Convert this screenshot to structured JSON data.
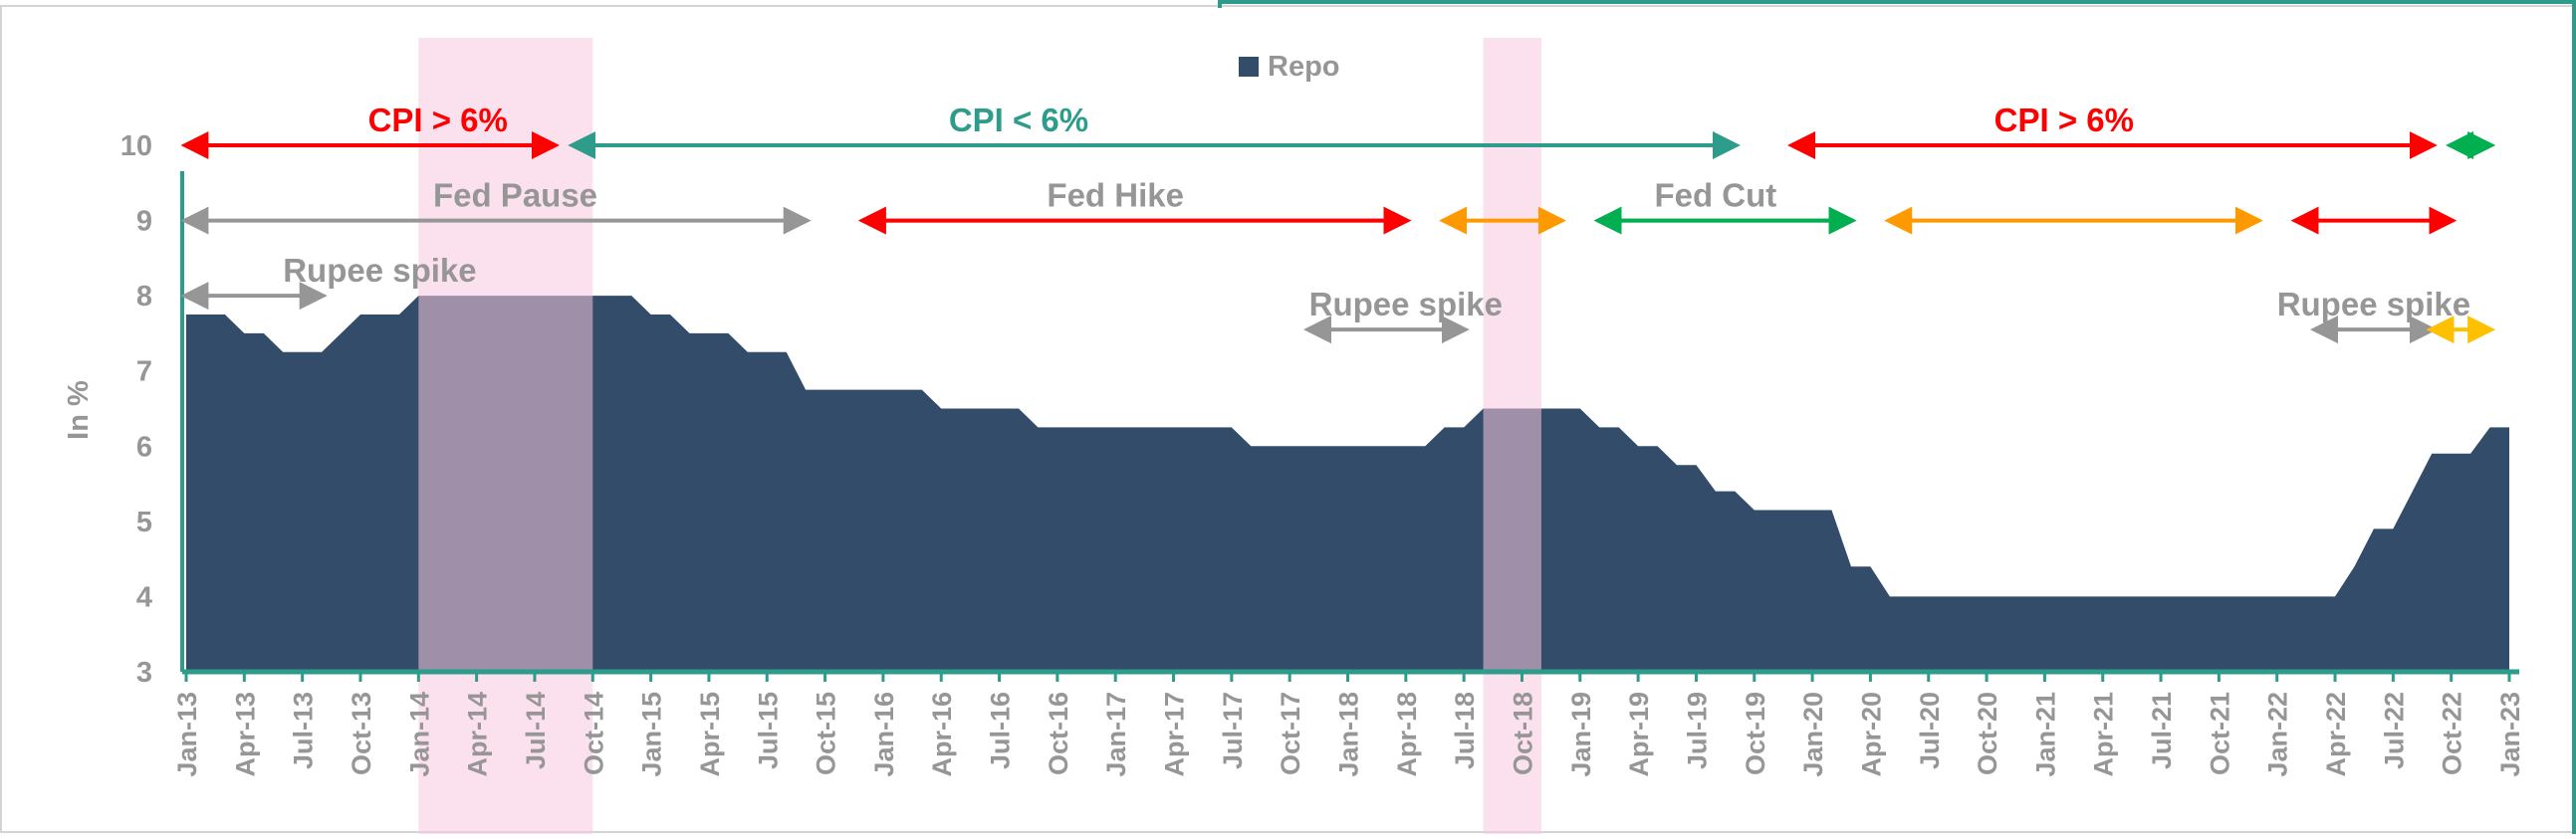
{
  "chart_data": {
    "type": "area",
    "title": "",
    "ylabel": "In %",
    "xlabel": "",
    "ylim": [
      3,
      10
    ],
    "yticks": [
      "3",
      "4",
      "5",
      "6",
      "7",
      "8",
      "9",
      "10"
    ],
    "legend": {
      "position": "top-center",
      "entries": [
        {
          "name": "Repo",
          "color": "#334c69"
        }
      ]
    },
    "grid": false,
    "x_start": "Jan-13",
    "x_end": "Jan-23",
    "xticks": [
      "Jan-13",
      "Apr-13",
      "Jul-13",
      "Oct-13",
      "Jan-14",
      "Apr-14",
      "Jul-14",
      "Oct-14",
      "Jan-15",
      "Apr-15",
      "Jul-15",
      "Oct-15",
      "Jan-16",
      "Apr-16",
      "Jul-16",
      "Oct-16",
      "Jan-17",
      "Apr-17",
      "Jul-17",
      "Oct-17",
      "Jan-18",
      "Apr-18",
      "Jul-18",
      "Oct-18",
      "Jan-19",
      "Apr-19",
      "Jul-19",
      "Oct-19",
      "Jan-20",
      "Apr-20",
      "Jul-20",
      "Oct-20",
      "Jan-21",
      "Apr-21",
      "Jul-21",
      "Oct-21",
      "Jan-22",
      "Apr-22",
      "Jul-22",
      "Oct-22",
      "Jan-23"
    ],
    "series": [
      {
        "name": "Repo",
        "color": "#334c69",
        "points": [
          [
            "Jan-13",
            7.75
          ],
          [
            "Mar-13",
            7.75
          ],
          [
            "Apr-13",
            7.5
          ],
          [
            "May-13",
            7.5
          ],
          [
            "Jun-13",
            7.25
          ],
          [
            "Jul-13",
            7.25
          ],
          [
            "Aug-13",
            7.25
          ],
          [
            "Oct-13",
            7.75
          ],
          [
            "Dec-13",
            7.75
          ],
          [
            "Jan-14",
            8.0
          ],
          [
            "Dec-14",
            8.0
          ],
          [
            "Jan-15",
            7.75
          ],
          [
            "Feb-15",
            7.75
          ],
          [
            "Mar-15",
            7.5
          ],
          [
            "May-15",
            7.5
          ],
          [
            "Jun-15",
            7.25
          ],
          [
            "Aug-15",
            7.25
          ],
          [
            "Sep-15",
            6.75
          ],
          [
            "Mar-16",
            6.75
          ],
          [
            "Apr-16",
            6.5
          ],
          [
            "Aug-16",
            6.5
          ],
          [
            "Sep-16",
            6.25
          ],
          [
            "Jul-17",
            6.25
          ],
          [
            "Aug-17",
            6.0
          ],
          [
            "May-18",
            6.0
          ],
          [
            "Jun-18",
            6.25
          ],
          [
            "Jul-18",
            6.25
          ],
          [
            "Aug-18",
            6.5
          ],
          [
            "Jan-19",
            6.5
          ],
          [
            "Feb-19",
            6.25
          ],
          [
            "Mar-19",
            6.25
          ],
          [
            "Apr-19",
            6.0
          ],
          [
            "May-19",
            6.0
          ],
          [
            "Jun-19",
            5.75
          ],
          [
            "Jul-19",
            5.75
          ],
          [
            "Aug-19",
            5.4
          ],
          [
            "Sep-19",
            5.4
          ],
          [
            "Oct-19",
            5.15
          ],
          [
            "Feb-20",
            5.15
          ],
          [
            "Mar-20",
            4.4
          ],
          [
            "Apr-20",
            4.4
          ],
          [
            "May-20",
            4.0
          ],
          [
            "Apr-22",
            4.0
          ],
          [
            "May-22",
            4.4
          ],
          [
            "Jun-22",
            4.9
          ],
          [
            "Jul-22",
            4.9
          ],
          [
            "Aug-22",
            5.4
          ],
          [
            "Sep-22",
            5.9
          ],
          [
            "Nov-22",
            5.9
          ],
          [
            "Dec-22",
            6.25
          ],
          [
            "Jan-23",
            6.25
          ]
        ]
      }
    ],
    "shaded_periods": [
      {
        "from": "Jan-14",
        "to": "Oct-14",
        "color": "#f8c6df"
      },
      {
        "from": "Aug-18",
        "to": "Nov-18",
        "color": "#f8c6df"
      }
    ],
    "annotations": [
      {
        "text": "CPI > 6%",
        "color": "#ff0000",
        "y": 10.0,
        "from": "Jan-13",
        "to": "Aug-14",
        "label_at": "Feb-14"
      },
      {
        "text": "CPI < 6%",
        "color": "#2e9c8a",
        "y": 10.0,
        "from": "Sep-14",
        "to": "Sep-19",
        "label_at": "Aug-16"
      },
      {
        "text": "CPI > 6%",
        "color": "#ff0000",
        "y": 10.0,
        "from": "Dec-19",
        "to": "Sep-22",
        "label_at": "Feb-21"
      },
      {
        "text": "",
        "color": "#00b050",
        "y": 10.0,
        "from": "Oct-22",
        "to": "Dec-22"
      },
      {
        "text": "Fed Pause",
        "color": "#969696",
        "y": 9.0,
        "from": "Jan-13",
        "to": "Sep-15",
        "label_at": "Jun-14"
      },
      {
        "text": "Fed Hike",
        "color": "#969696",
        "y": 9.0,
        "from": "Dec-15",
        "to": "Apr-18",
        "label_at": "Jan-17"
      },
      {
        "text": "",
        "color": "#ff0000",
        "y": 9.0,
        "from": "Dec-15",
        "to": "Apr-18"
      },
      {
        "text": "",
        "color": "#ff9900",
        "y": 9.0,
        "from": "Jun-18",
        "to": "Dec-18"
      },
      {
        "text": "Fed Cut",
        "color": "#969696",
        "y": 9.0,
        "from": "Feb-19",
        "to": "Mar-20",
        "label_at": "Aug-19"
      },
      {
        "text": "",
        "color": "#00b050",
        "y": 9.0,
        "from": "Feb-19",
        "to": "Mar-20"
      },
      {
        "text": "",
        "color": "#ff9900",
        "y": 9.0,
        "from": "May-20",
        "to": "Dec-21"
      },
      {
        "text": "",
        "color": "#ff0000",
        "y": 9.0,
        "from": "Feb-22",
        "to": "Oct-22"
      },
      {
        "text": "Rupee spike",
        "color": "#969696",
        "y": 8.0,
        "from": "Jan-13",
        "to": "Aug-13",
        "label_at": "Nov-13"
      },
      {
        "text": "Rupee spike",
        "color": "#969696",
        "y": 7.55,
        "from": "Nov-17",
        "to": "Jul-18",
        "label_at": "Apr-18"
      },
      {
        "text": "Rupee spike",
        "color": "#969696",
        "y": 7.55,
        "from": "Mar-22",
        "to": "Sep-22",
        "label_at": "Jun-22"
      },
      {
        "text": "",
        "color": "#ffc000",
        "y": 7.55,
        "from": "Sep-22",
        "to": "Dec-22"
      }
    ]
  }
}
